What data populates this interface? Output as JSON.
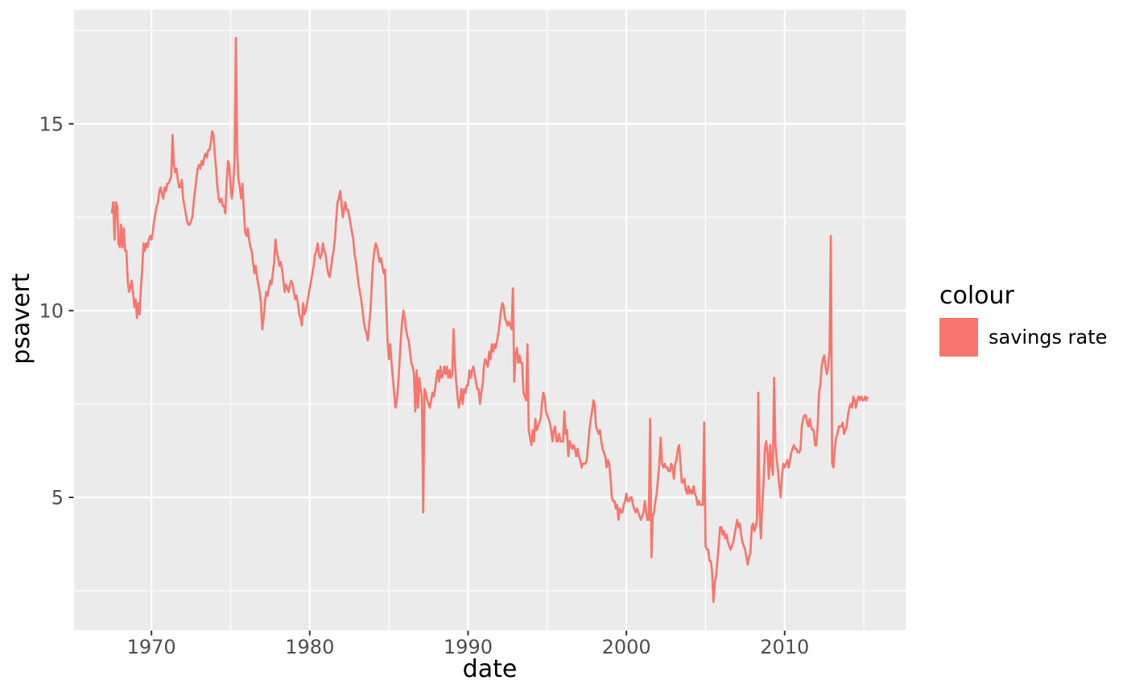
{
  "figure": {
    "background": "#FFFFFF",
    "panel_background": "#EBEBEB",
    "gridline_color": "#FFFFFF",
    "tick_mark_color": "#333333",
    "tick_label_color": "#4D4D4D"
  },
  "axes": {
    "x": {
      "label": "date",
      "tick_labels": [
        "1970",
        "1980",
        "1990",
        "2000",
        "2010"
      ]
    },
    "y": {
      "label": "psavert",
      "tick_labels": [
        "5",
        "10",
        "15"
      ]
    }
  },
  "legend": {
    "title": "colour",
    "items": [
      {
        "label": "savings rate",
        "color": "#F8766D",
        "glyph": "filled-square"
      }
    ]
  },
  "chart_data": {
    "type": "line",
    "title": "",
    "xlabel": "date",
    "ylabel": "psavert",
    "legend_position": "right",
    "grid": "on",
    "xlim": [
      1965.11,
      2017.64
    ],
    "ylim": [
      1.445,
      18.055
    ],
    "x_major_ticks": [
      1970,
      1980,
      1990,
      2000,
      2010
    ],
    "x_minor_ticks": [
      1975,
      1985,
      1995,
      2005,
      2015
    ],
    "y_major_ticks": [
      5,
      10,
      15
    ],
    "y_minor_ticks": [
      2.5,
      7.5,
      12.5,
      17.5
    ],
    "series": [
      {
        "name": "savings rate",
        "color": "#F8766D",
        "start": "1967-07",
        "end": "2015-04",
        "frequency": "monthly",
        "values": [
          12.6,
          12.9,
          11.9,
          12.9,
          12.8,
          11.8,
          11.7,
          12.3,
          11.7,
          12.2,
          11.6,
          11.6,
          10.8,
          10.5,
          10.6,
          10.8,
          10.5,
          10.1,
          10.3,
          9.8,
          10.2,
          9.9,
          10.6,
          11.1,
          11.8,
          11.6,
          11.8,
          11.7,
          11.9,
          12.0,
          11.9,
          12.1,
          12.4,
          12.6,
          12.8,
          12.9,
          13.2,
          13.3,
          13.1,
          13.0,
          13.3,
          13.2,
          13.4,
          13.4,
          13.5,
          13.6,
          14.7,
          13.9,
          13.7,
          13.8,
          13.5,
          13.3,
          13.3,
          13.5,
          13.0,
          12.8,
          12.6,
          12.4,
          12.3,
          12.3,
          12.4,
          12.5,
          12.9,
          13.2,
          13.5,
          13.8,
          13.9,
          13.8,
          14.0,
          13.9,
          14.1,
          14.2,
          14.1,
          14.3,
          14.3,
          14.5,
          14.8,
          14.7,
          14.2,
          13.8,
          13.3,
          13.0,
          12.9,
          13.0,
          12.8,
          12.8,
          12.6,
          13.4,
          14.0,
          13.9,
          13.3,
          13.0,
          13.4,
          14.0,
          17.3,
          14.2,
          13.5,
          13.3,
          13.0,
          13.4,
          12.7,
          12.1,
          12.0,
          12.2,
          11.9,
          11.7,
          11.6,
          11.3,
          11.0,
          11.2,
          10.9,
          10.7,
          10.5,
          10.2,
          9.5,
          9.8,
          10.2,
          10.5,
          10.4,
          10.6,
          10.8,
          10.7,
          11.0,
          11.3,
          11.9,
          11.6,
          11.4,
          11.2,
          11.3,
          11.1,
          10.8,
          10.5,
          10.7,
          10.6,
          10.5,
          10.7,
          10.8,
          10.7,
          10.5,
          10.3,
          10.4,
          10.2,
          9.9,
          9.8,
          9.6,
          10.2,
          9.9,
          10.0,
          10.2,
          10.4,
          10.6,
          10.8,
          11.0,
          11.2,
          11.5,
          11.6,
          11.8,
          11.5,
          11.4,
          11.5,
          11.8,
          11.6,
          11.5,
          11.2,
          11.0,
          10.9,
          11.1,
          11.4,
          11.6,
          11.9,
          12.4,
          12.9,
          13.0,
          13.2,
          12.9,
          12.5,
          12.7,
          12.9,
          12.7,
          12.7,
          12.5,
          12.3,
          12.1,
          11.9,
          11.5,
          11.3,
          11.0,
          10.7,
          10.5,
          10.3,
          10.0,
          9.7,
          9.5,
          9.4,
          9.2,
          9.6,
          10.0,
          10.7,
          11.3,
          11.6,
          11.8,
          11.7,
          11.5,
          11.3,
          11.4,
          11.2,
          11.0,
          11.1,
          10.1,
          9.2,
          8.7,
          9.1,
          8.6,
          8.2,
          7.8,
          7.4,
          7.6,
          8.0,
          8.6,
          9.2,
          9.7,
          10.0,
          9.8,
          9.5,
          9.3,
          9.2,
          8.9,
          8.6,
          8.5,
          8.3,
          7.3,
          8.4,
          7.4,
          8.2,
          7.9,
          7.7,
          4.6,
          7.9,
          7.8,
          7.6,
          7.5,
          7.4,
          7.6,
          7.8,
          7.7,
          7.9,
          8.2,
          8.4,
          8.1,
          8.5,
          8.2,
          8.3,
          8.5,
          8.3,
          8.5,
          8.2,
          8.4,
          8.2,
          8.3,
          9.5,
          8.6,
          8.1,
          7.7,
          7.4,
          7.6,
          7.9,
          7.5,
          7.9,
          7.8,
          8.0,
          8.0,
          8.4,
          8.2,
          8.4,
          8.5,
          8.3,
          8.1,
          7.9,
          7.9,
          7.5,
          7.8,
          8.0,
          8.5,
          8.7,
          8.6,
          8.5,
          8.9,
          8.7,
          9.1,
          8.9,
          9.1,
          9.0,
          9.2,
          9.4,
          9.7,
          10.0,
          10.2,
          10.1,
          9.8,
          9.7,
          9.6,
          9.7,
          9.6,
          9.5,
          10.6,
          8.1,
          8.8,
          9.0,
          8.6,
          8.8,
          8.6,
          8.6,
          7.8,
          7.7,
          7.6,
          9.1,
          6.8,
          6.6,
          6.4,
          6.8,
          6.5,
          7.1,
          6.8,
          6.9,
          7.0,
          7.1,
          7.5,
          7.8,
          7.7,
          7.3,
          7.2,
          7.1,
          7.0,
          6.8,
          6.5,
          6.8,
          6.9,
          6.5,
          6.5,
          6.7,
          6.5,
          6.5,
          6.5,
          7.3,
          6.7,
          6.8,
          6.1,
          6.5,
          6.4,
          6.3,
          6.4,
          6.3,
          6.1,
          6.3,
          6.1,
          6.0,
          5.8,
          5.9,
          5.9,
          5.9,
          6.0,
          6.4,
          6.8,
          7.1,
          7.3,
          7.6,
          7.5,
          6.9,
          6.8,
          6.7,
          6.8,
          6.5,
          6.3,
          6.2,
          6.1,
          5.8,
          6.0,
          5.9,
          5.5,
          5.0,
          4.9,
          4.9,
          4.7,
          4.8,
          4.4,
          4.7,
          4.6,
          4.6,
          4.8,
          4.9,
          5.1,
          4.9,
          4.9,
          5.0,
          5.0,
          4.8,
          4.7,
          4.6,
          4.7,
          4.6,
          4.5,
          4.4,
          4.5,
          4.6,
          4.9,
          4.6,
          4.4,
          4.4,
          7.1,
          3.4,
          4.5,
          4.6,
          4.9,
          5.1,
          5.5,
          5.9,
          6.6,
          5.9,
          5.8,
          5.9,
          5.8,
          5.8,
          5.7,
          5.7,
          5.9,
          5.8,
          5.5,
          5.9,
          6.0,
          6.3,
          6.4,
          5.9,
          5.4,
          5.4,
          5.5,
          5.2,
          5.1,
          5.3,
          5.1,
          5.2,
          5.1,
          5.3,
          5.1,
          5.0,
          4.8,
          4.9,
          4.8,
          4.8,
          4.8,
          7.0,
          3.7,
          3.6,
          3.6,
          3.3,
          3.3,
          3.0,
          2.2,
          2.7,
          2.9,
          3.3,
          3.7,
          4.2,
          4.2,
          4.0,
          4.1,
          3.9,
          4.0,
          3.8,
          3.7,
          3.6,
          3.7,
          3.8,
          4.0,
          4.2,
          4.4,
          4.2,
          4.3,
          4.0,
          3.8,
          3.7,
          3.6,
          3.4,
          3.2,
          3.4,
          3.5,
          4.2,
          4.3,
          4.1,
          4.2,
          4.4,
          7.8,
          4.6,
          3.9,
          4.8,
          5.4,
          6.3,
          6.5,
          6.2,
          5.5,
          6.4,
          5.9,
          5.6,
          8.2,
          6.4,
          6.0,
          5.7,
          5.3,
          5.0,
          5.6,
          5.9,
          5.8,
          5.9,
          6.0,
          5.8,
          6.0,
          6.2,
          6.3,
          6.4,
          6.3,
          6.3,
          6.2,
          6.2,
          6.3,
          6.9,
          7.1,
          7.2,
          7.2,
          7.0,
          6.9,
          7.1,
          6.9,
          6.8,
          6.8,
          6.4,
          6.4,
          6.9,
          7.8,
          8.0,
          8.5,
          8.7,
          8.8,
          8.5,
          8.3,
          8.5,
          8.9,
          12.0,
          5.9,
          5.8,
          6.3,
          6.6,
          6.7,
          6.9,
          6.9,
          6.9,
          7.0,
          6.7,
          6.8,
          6.9,
          7.2,
          7.4,
          7.5,
          7.4,
          7.7,
          7.6,
          7.4,
          7.6,
          7.7,
          7.6,
          7.7,
          7.6,
          7.6,
          7.7,
          7.6,
          7.7
        ]
      }
    ]
  }
}
